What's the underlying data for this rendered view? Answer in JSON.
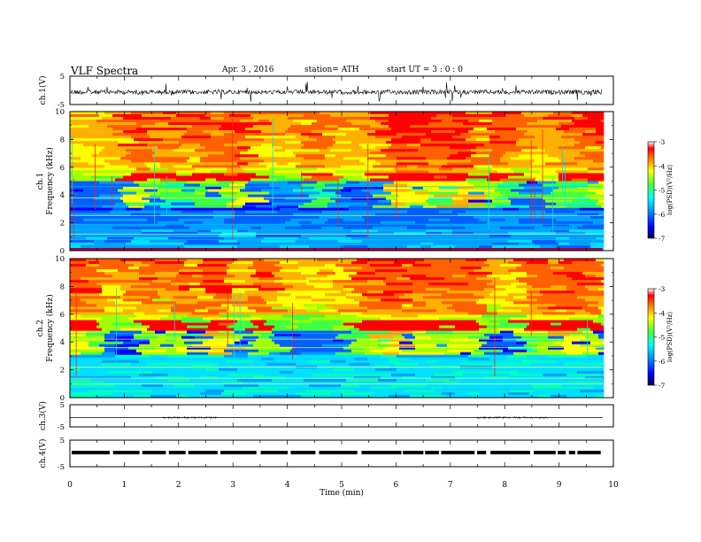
{
  "header": {
    "title": "VLF  Spectra",
    "date": "Apr. 3   , 2016",
    "station": "station= ATH",
    "start": "start  UT  =   3  : 0  : 0"
  },
  "chart_data": [
    {
      "type": "line",
      "name": "ch1-waveform",
      "ylabel": "ch.1(V)",
      "ylim": [
        -5,
        5
      ],
      "yticks": [
        "5",
        "-5"
      ],
      "color": "#000000"
    },
    {
      "type": "heatmap",
      "name": "ch1-spectrogram",
      "ylabel": "ch.1\nFrequency  (kHz)",
      "ylim": [
        0,
        10
      ],
      "yticks": [
        "0",
        "2",
        "4",
        "6",
        "8",
        "10"
      ],
      "colorbar": {
        "label": "log(PSD)(V²/Hz)",
        "range": [
          -7,
          -3
        ],
        "ticks": [
          "-3",
          "-4",
          "-5",
          "-6",
          "-7"
        ]
      }
    },
    {
      "type": "heatmap",
      "name": "ch2-spectrogram",
      "ylabel": "ch.2\nFrequency  (kHz)",
      "ylim": [
        0,
        10
      ],
      "yticks": [
        "0",
        "2",
        "4",
        "6",
        "8",
        "10"
      ],
      "colorbar": {
        "label": "log(PSD)(V²/Hz)",
        "range": [
          -7,
          -3
        ],
        "ticks": [
          "-3",
          "-4",
          "-5",
          "-6",
          "-7"
        ]
      }
    },
    {
      "type": "line",
      "name": "ch3-waveform",
      "ylabel": "ch.3(V)",
      "ylim": [
        -5,
        5
      ],
      "yticks": [
        "5",
        "-5"
      ]
    },
    {
      "type": "line",
      "name": "ch4-waveform",
      "ylabel": "ch.4(V)",
      "ylim": [
        -5,
        5
      ],
      "yticks": [
        "5",
        "-5"
      ]
    }
  ],
  "xaxis": {
    "label": "Time  (min)",
    "xlim": [
      0,
      10
    ],
    "ticks": [
      "0",
      "1",
      "2",
      "3",
      "4",
      "5",
      "6",
      "7",
      "8",
      "9",
      "10"
    ],
    "data_end": 9.8
  },
  "colors": {
    "scale": [
      "#000080",
      "#0000ff",
      "#0080ff",
      "#00ffff",
      "#00ff80",
      "#80ff00",
      "#ffff00",
      "#ff8000",
      "#ff0000",
      "#ffffff"
    ]
  }
}
